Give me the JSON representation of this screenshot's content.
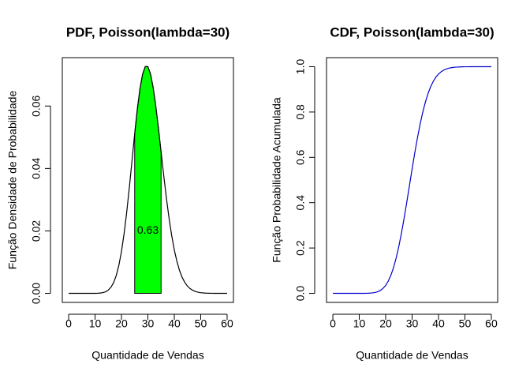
{
  "chart_data": [
    {
      "type": "line",
      "title": "PDF, Poisson(lambda=30)",
      "x_label": "Quantidade de Vendas",
      "y_label": "Função Densidade de Probabilidade",
      "x": [
        0,
        1,
        2,
        3,
        4,
        5,
        6,
        7,
        8,
        9,
        10,
        11,
        12,
        13,
        14,
        15,
        16,
        17,
        18,
        19,
        20,
        21,
        22,
        23,
        24,
        25,
        26,
        27,
        28,
        29,
        30,
        31,
        32,
        33,
        34,
        35,
        36,
        37,
        38,
        39,
        40,
        41,
        42,
        43,
        44,
        45,
        46,
        47,
        48,
        49,
        50,
        51,
        52,
        53,
        54,
        55,
        56,
        57,
        58,
        59,
        60
      ],
      "series": [
        {
          "color": "#000000",
          "values": [
            0,
            0,
            0,
            0,
            0,
            0,
            0,
            0,
            0,
            0,
            1e-05,
            4e-05,
            0.0001,
            0.00024,
            0.00051,
            0.00103,
            0.00192,
            0.0034,
            0.00566,
            0.00894,
            0.01341,
            0.01916,
            0.02612,
            0.03407,
            0.04259,
            0.05111,
            0.05898,
            0.06553,
            0.07021,
            0.07263,
            0.07263,
            0.07029,
            0.0659,
            0.05991,
            0.05286,
            0.04531,
            0.03776,
            0.03061,
            0.02417,
            0.01859,
            0.01394,
            0.0102,
            0.00729,
            0.00508,
            0.00347,
            0.00231,
            0.00151,
            0.00096,
            0.0006,
            0.00037,
            0.00022,
            0.00013,
            7e-05,
            4e-05,
            2e-05,
            1e-05,
            0,
            0,
            0,
            0,
            0
          ]
        }
      ],
      "shade": {
        "from": 25,
        "to": 35,
        "color": "#00ff00"
      },
      "annotation": {
        "text": "0.63",
        "x": 30,
        "y": 0.02
      },
      "xlim": [
        -2.4,
        62.4
      ],
      "xticks": [
        0,
        10,
        20,
        30,
        40,
        50,
        60
      ],
      "ylim": [
        -0.0029,
        0.0755
      ],
      "yticks": [
        {
          "value": 0,
          "label": "0.00"
        },
        0.02,
        0.04,
        0.06
      ]
    },
    {
      "type": "line",
      "title": "CDF, Poisson(lambda=30)",
      "x_label": "Quantidade de Vendas",
      "y_label": "Função Probabilidade Acumulada",
      "x": [
        0,
        1,
        2,
        3,
        4,
        5,
        6,
        7,
        8,
        9,
        10,
        11,
        12,
        13,
        14,
        15,
        16,
        17,
        18,
        19,
        20,
        21,
        22,
        23,
        24,
        25,
        26,
        27,
        28,
        29,
        30,
        31,
        32,
        33,
        34,
        35,
        36,
        37,
        38,
        39,
        40,
        41,
        42,
        43,
        44,
        45,
        46,
        47,
        48,
        49,
        50,
        51,
        52,
        53,
        54,
        55,
        56,
        57,
        58,
        59,
        60
      ],
      "series": [
        {
          "color": "#0000cd",
          "values": [
            0,
            0,
            0,
            0,
            0,
            0,
            0,
            0,
            0,
            0,
            1e-05,
            5e-05,
            0.00015,
            0.00039,
            0.0009,
            0.00193,
            0.00385,
            0.00725,
            0.01291,
            0.02185,
            0.03526,
            0.05442,
            0.08054,
            0.11461,
            0.1572,
            0.20831,
            0.26729,
            0.33282,
            0.40303,
            0.47566,
            0.54829,
            0.61858,
            0.68448,
            0.74439,
            0.79725,
            0.84256,
            0.88032,
            0.91093,
            0.9351,
            0.95369,
            0.96763,
            0.97783,
            0.98512,
            0.9902,
            0.99367,
            0.99598,
            0.99749,
            0.99845,
            0.99905,
            0.99942,
            0.99964,
            0.99977,
            0.99984,
            0.99988,
            0.9999,
            0.99994,
            0.99996,
            0.99997,
            0.99998,
            0.99999,
            0.99999
          ]
        }
      ],
      "xlim": [
        -2.4,
        62.4
      ],
      "xticks": [
        0,
        10,
        20,
        30,
        40,
        50,
        60
      ],
      "ylim": [
        -0.04,
        1.04
      ],
      "yticks": [
        {
          "value": 0,
          "label": "0.0"
        },
        0.2,
        0.4,
        0.6,
        0.8,
        {
          "value": 1,
          "label": "1.0"
        }
      ]
    }
  ]
}
